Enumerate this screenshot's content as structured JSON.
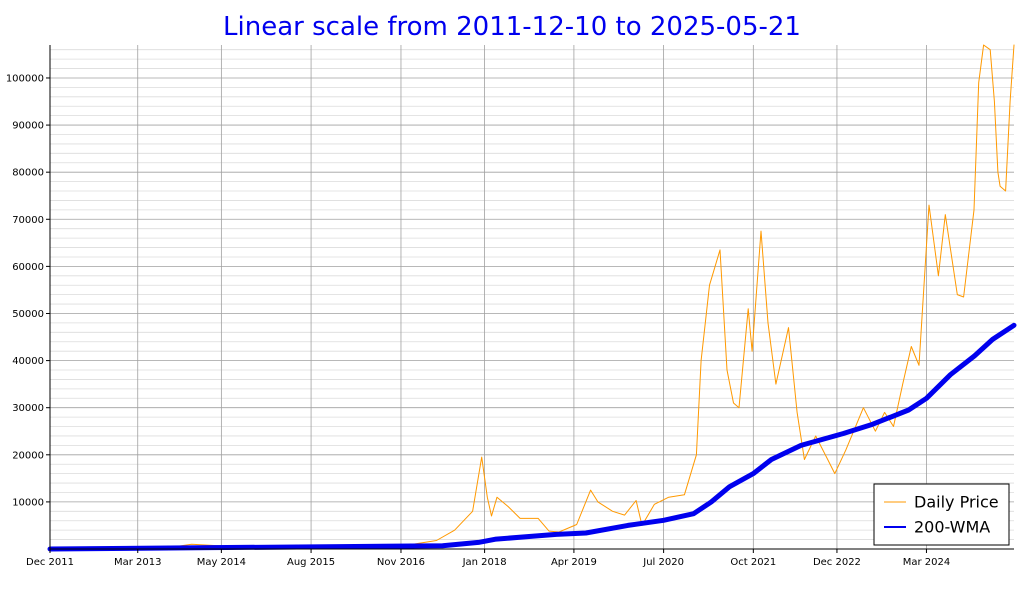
{
  "colors": {
    "title": "#0000ee",
    "price": "#ff9900",
    "wma": "#0000ee",
    "grid_major": "#a0a0a0",
    "grid_minor": "#dcdcdc"
  },
  "chart_data": {
    "type": "line",
    "title": "Linear scale from 2011-12-10 to 2025-05-21",
    "xlabel": "",
    "ylabel": "",
    "x_range": [
      "2011-12-10",
      "2025-05-21"
    ],
    "ylim": [
      0,
      107000
    ],
    "grid": true,
    "legend_position": "bottom-right",
    "x_ticks": [
      {
        "date": "2011-12-10",
        "label": "Dec 2011"
      },
      {
        "date": "2013-03-01",
        "label": "Mar 2013"
      },
      {
        "date": "2014-05-01",
        "label": "May 2014"
      },
      {
        "date": "2015-08-01",
        "label": "Aug 2015"
      },
      {
        "date": "2016-11-01",
        "label": "Nov 2016"
      },
      {
        "date": "2018-01-01",
        "label": "Jan 2018"
      },
      {
        "date": "2019-04-01",
        "label": "Apr 2019"
      },
      {
        "date": "2020-07-01",
        "label": "Jul 2020"
      },
      {
        "date": "2021-10-01",
        "label": "Oct 2021"
      },
      {
        "date": "2022-12-01",
        "label": "Dec 2022"
      },
      {
        "date": "2024-03-01",
        "label": "Mar 2024"
      }
    ],
    "y_ticks": [
      10000,
      20000,
      30000,
      40000,
      50000,
      60000,
      70000,
      80000,
      90000,
      100000
    ],
    "series": [
      {
        "name": "Daily Price",
        "color": "#ff9900",
        "points": [
          [
            "2011-12-10",
            3
          ],
          [
            "2012-06-01",
            6
          ],
          [
            "2012-12-01",
            13
          ],
          [
            "2013-04-01",
            100
          ],
          [
            "2013-07-01",
            90
          ],
          [
            "2013-12-01",
            1000
          ],
          [
            "2014-06-01",
            600
          ],
          [
            "2015-01-01",
            300
          ],
          [
            "2015-08-01",
            250
          ],
          [
            "2016-01-01",
            400
          ],
          [
            "2016-07-01",
            650
          ],
          [
            "2017-01-01",
            1000
          ],
          [
            "2017-05-01",
            1800
          ],
          [
            "2017-08-01",
            4000
          ],
          [
            "2017-11-01",
            8000
          ],
          [
            "2017-12-17",
            19500
          ],
          [
            "2018-01-15",
            11000
          ],
          [
            "2018-02-05",
            7000
          ],
          [
            "2018-03-05",
            11000
          ],
          [
            "2018-05-01",
            9000
          ],
          [
            "2018-07-01",
            6500
          ],
          [
            "2018-10-01",
            6500
          ],
          [
            "2018-11-25",
            3800
          ],
          [
            "2019-01-15",
            3600
          ],
          [
            "2019-04-15",
            5200
          ],
          [
            "2019-06-25",
            12500
          ],
          [
            "2019-08-01",
            10000
          ],
          [
            "2019-10-15",
            8000
          ],
          [
            "2019-12-15",
            7200
          ],
          [
            "2020-02-12",
            10300
          ],
          [
            "2020-03-13",
            5000
          ],
          [
            "2020-05-15",
            9500
          ],
          [
            "2020-07-27",
            11000
          ],
          [
            "2020-10-15",
            11500
          ],
          [
            "2020-12-15",
            20000
          ],
          [
            "2021-01-08",
            40000
          ],
          [
            "2021-02-20",
            56000
          ],
          [
            "2021-04-14",
            63500
          ],
          [
            "2021-05-20",
            38000
          ],
          [
            "2021-06-22",
            31000
          ],
          [
            "2021-07-20",
            30000
          ],
          [
            "2021-09-05",
            51000
          ],
          [
            "2021-09-25",
            42000
          ],
          [
            "2021-11-09",
            67500
          ],
          [
            "2021-12-15",
            48000
          ],
          [
            "2022-01-24",
            35000
          ],
          [
            "2022-03-29",
            47000
          ],
          [
            "2022-05-12",
            29000
          ],
          [
            "2022-06-18",
            19000
          ],
          [
            "2022-08-15",
            24000
          ],
          [
            "2022-10-15",
            19000
          ],
          [
            "2022-11-20",
            16000
          ],
          [
            "2023-01-15",
            21000
          ],
          [
            "2023-04-15",
            30000
          ],
          [
            "2023-06-15",
            25000
          ],
          [
            "2023-08-01",
            29000
          ],
          [
            "2023-09-15",
            26000
          ],
          [
            "2023-11-01",
            35000
          ],
          [
            "2023-12-15",
            43000
          ],
          [
            "2024-01-23",
            39000
          ],
          [
            "2024-03-14",
            73000
          ],
          [
            "2024-05-01",
            58000
          ],
          [
            "2024-06-05",
            71000
          ],
          [
            "2024-08-05",
            54000
          ],
          [
            "2024-09-06",
            53500
          ],
          [
            "2024-10-29",
            72000
          ],
          [
            "2024-11-22",
            99000
          ],
          [
            "2024-12-17",
            107000
          ],
          [
            "2025-01-20",
            106000
          ],
          [
            "2025-02-10",
            95000
          ],
          [
            "2025-02-28",
            80000
          ],
          [
            "2025-03-11",
            77000
          ],
          [
            "2025-04-08",
            76000
          ],
          [
            "2025-05-01",
            95000
          ],
          [
            "2025-05-21",
            107000
          ]
        ]
      },
      {
        "name": "200-WMA",
        "color": "#0000ee",
        "points": [
          [
            "2011-12-10",
            0
          ],
          [
            "2016-01-01",
            500
          ],
          [
            "2017-06-01",
            700
          ],
          [
            "2017-12-01",
            1400
          ],
          [
            "2018-03-01",
            2100
          ],
          [
            "2018-09-01",
            2700
          ],
          [
            "2019-01-01",
            3100
          ],
          [
            "2019-06-01",
            3400
          ],
          [
            "2020-01-01",
            5000
          ],
          [
            "2020-07-01",
            6100
          ],
          [
            "2020-12-01",
            7500
          ],
          [
            "2021-03-01",
            10000
          ],
          [
            "2021-06-01",
            13200
          ],
          [
            "2021-10-01",
            16000
          ],
          [
            "2022-01-01",
            19000
          ],
          [
            "2022-06-01",
            22000
          ],
          [
            "2023-01-01",
            24500
          ],
          [
            "2023-06-01",
            26500
          ],
          [
            "2023-12-01",
            29500
          ],
          [
            "2024-03-01",
            32000
          ],
          [
            "2024-07-01",
            37000
          ],
          [
            "2024-11-01",
            41000
          ],
          [
            "2025-02-01",
            44500
          ],
          [
            "2025-05-21",
            47500
          ]
        ]
      }
    ]
  }
}
